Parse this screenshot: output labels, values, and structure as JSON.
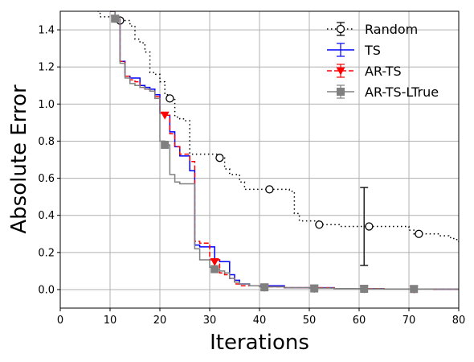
{
  "chart_data": {
    "type": "line",
    "title": "",
    "xlabel": "Iterations",
    "ylabel": "Absolute Error",
    "xlim": [
      0,
      80
    ],
    "ylim": [
      -0.1,
      1.5
    ],
    "xticks": [
      "0",
      "10",
      "20",
      "30",
      "40",
      "50",
      "60",
      "70",
      "80"
    ],
    "xtick_values": [
      0,
      10,
      20,
      30,
      40,
      50,
      60,
      70,
      80
    ],
    "yticks": [
      "0.0",
      "0.2",
      "0.4",
      "0.6",
      "0.8",
      "1.0",
      "1.2",
      "1.4"
    ],
    "ytick_values": [
      0,
      0.2,
      0.4,
      0.6,
      0.8,
      1.0,
      1.2,
      1.4
    ],
    "grid": true,
    "legend_position": "top-right",
    "series": [
      {
        "name": "Random",
        "color": "#000000",
        "dash": "dotted",
        "marker": "open-circle",
        "x": [
          7.5,
          8,
          11,
          12,
          13,
          14,
          15,
          16,
          17,
          18,
          19,
          20,
          21,
          22,
          23,
          24,
          25,
          26,
          27,
          29,
          31,
          32,
          33,
          34,
          35,
          36,
          37,
          40,
          42,
          44,
          46,
          47,
          48,
          50,
          52,
          54,
          56,
          58,
          60,
          62,
          64,
          66,
          68,
          70,
          71,
          72,
          74,
          76,
          78,
          79,
          80
        ],
        "y": [
          1.5,
          1.47,
          1.47,
          1.46,
          1.45,
          1.42,
          1.35,
          1.33,
          1.28,
          1.17,
          1.16,
          1.12,
          1.05,
          1.03,
          0.93,
          0.92,
          0.91,
          0.73,
          0.73,
          0.73,
          0.73,
          0.71,
          0.65,
          0.62,
          0.62,
          0.58,
          0.54,
          0.54,
          0.54,
          0.54,
          0.53,
          0.41,
          0.37,
          0.37,
          0.35,
          0.35,
          0.34,
          0.34,
          0.34,
          0.34,
          0.34,
          0.34,
          0.34,
          0.32,
          0.3,
          0.3,
          0.3,
          0.29,
          0.28,
          0.27,
          0.25
        ],
        "markers_x": [
          12,
          22,
          32,
          42,
          52,
          62,
          72
        ],
        "markers_y": [
          1.45,
          1.03,
          0.71,
          0.54,
          0.35,
          0.34,
          0.3
        ],
        "errorbar": {
          "x": 61,
          "ylow": 0.13,
          "yhigh": 0.55
        }
      },
      {
        "name": "TS",
        "color": "#0000ff",
        "dash": "solid",
        "marker": "none",
        "x": [
          10,
          11,
          12,
          13,
          14,
          15,
          16,
          17,
          18,
          19,
          20,
          21,
          22,
          23,
          24,
          25,
          26,
          27,
          28,
          30,
          31,
          32,
          33,
          34,
          35,
          36,
          38,
          40,
          42,
          45,
          50,
          55,
          60,
          65,
          70,
          75,
          80
        ],
        "y": [
          1.5,
          1.46,
          1.23,
          1.15,
          1.14,
          1.14,
          1.1,
          1.09,
          1.08,
          1.05,
          0.95,
          0.94,
          0.85,
          0.77,
          0.72,
          0.72,
          0.64,
          0.24,
          0.23,
          0.23,
          0.16,
          0.15,
          0.15,
          0.08,
          0.05,
          0.03,
          0.02,
          0.02,
          0.02,
          0.01,
          0.01,
          0.005,
          0.005,
          0.003,
          0.003,
          0.002,
          0.002
        ]
      },
      {
        "name": "AR-TS",
        "color": "#ff0000",
        "dash": "dashed",
        "marker": "filled-triangle-down",
        "x": [
          10,
          11,
          12,
          13,
          14,
          15,
          16,
          17,
          18,
          19,
          20,
          21,
          22,
          23,
          24,
          25,
          26,
          27,
          28,
          29,
          30,
          31,
          32,
          33,
          34,
          35,
          36,
          38,
          40,
          45,
          50,
          55,
          60,
          65,
          70,
          75,
          80
        ],
        "y": [
          1.5,
          1.46,
          1.23,
          1.15,
          1.13,
          1.12,
          1.09,
          1.08,
          1.07,
          1.04,
          0.95,
          0.94,
          0.84,
          0.77,
          0.73,
          0.73,
          0.69,
          0.26,
          0.25,
          0.25,
          0.16,
          0.16,
          0.09,
          0.08,
          0.06,
          0.03,
          0.02,
          0.02,
          0.015,
          0.01,
          0.01,
          0.005,
          0.005,
          0.003,
          0.003,
          0.002,
          0.002
        ],
        "markers_x": [
          11,
          21,
          31,
          41,
          51,
          61,
          71
        ],
        "markers_y": [
          1.46,
          0.94,
          0.15,
          0.012,
          0.005,
          0.003,
          0.002
        ]
      },
      {
        "name": "AR-TS-LTrue",
        "color": "#808080",
        "dash": "solid",
        "marker": "filled-square",
        "x": [
          10,
          11,
          12,
          13,
          14,
          15,
          16,
          17,
          18,
          19,
          20,
          21,
          22,
          23,
          24,
          25,
          26,
          27,
          28,
          29,
          30,
          31,
          32,
          33,
          34,
          35,
          36,
          38,
          40,
          45,
          50,
          55,
          60,
          65,
          70,
          75,
          80
        ],
        "y": [
          1.5,
          1.46,
          1.22,
          1.14,
          1.11,
          1.1,
          1.09,
          1.08,
          1.07,
          1.03,
          0.8,
          0.78,
          0.62,
          0.58,
          0.57,
          0.57,
          0.57,
          0.22,
          0.16,
          0.16,
          0.12,
          0.11,
          0.1,
          0.09,
          0.06,
          0.04,
          0.03,
          0.02,
          0.015,
          0.01,
          0.008,
          0.005,
          0.004,
          0.003,
          0.003,
          0.002,
          0.002
        ],
        "markers_x": [
          11,
          21,
          31,
          41,
          51,
          61,
          71
        ],
        "markers_y": [
          1.46,
          0.78,
          0.11,
          0.012,
          0.006,
          0.004,
          0.003
        ]
      }
    ]
  }
}
